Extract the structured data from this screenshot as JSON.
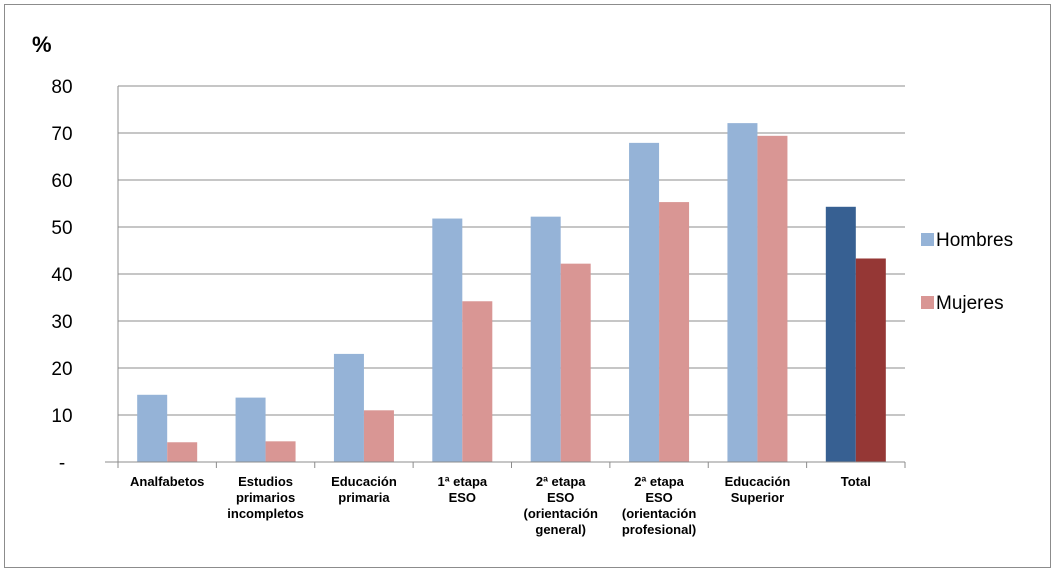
{
  "chart_data": {
    "type": "bar",
    "title": "",
    "ylabel": "%",
    "xlabel": "",
    "ylim": [
      0,
      80
    ],
    "yticks": [
      {
        "value": 0,
        "label": "-"
      },
      {
        "value": 10,
        "label": "10"
      },
      {
        "value": 20,
        "label": "20"
      },
      {
        "value": 30,
        "label": "30"
      },
      {
        "value": 40,
        "label": "40"
      },
      {
        "value": 50,
        "label": "50"
      },
      {
        "value": 60,
        "label": "60"
      },
      {
        "value": 70,
        "label": "70"
      },
      {
        "value": 80,
        "label": "80"
      }
    ],
    "grid": true,
    "legend_position": "right",
    "categories": [
      [
        "Analfabetos"
      ],
      [
        "Estudios",
        "primarios",
        "incompletos"
      ],
      [
        "Educación",
        "primaria"
      ],
      [
        "1ª etapa",
        "ESO"
      ],
      [
        "2ª etapa",
        "ESO",
        "(orientación",
        "general)"
      ],
      [
        "2ª etapa",
        "ESO",
        "(orientación",
        "profesional)"
      ],
      [
        "Educación",
        "Superior"
      ],
      [
        "Total"
      ]
    ],
    "series": [
      {
        "name": "Hombres",
        "color": "#95b3d7",
        "total_color": "#376092",
        "values": [
          14.3,
          13.7,
          23.0,
          51.8,
          52.2,
          67.9,
          72.1,
          54.3
        ]
      },
      {
        "name": "Mujeres",
        "color": "#d99694",
        "total_color": "#953735",
        "values": [
          4.2,
          4.4,
          11.0,
          34.2,
          42.2,
          55.3,
          69.4,
          43.3
        ]
      }
    ]
  }
}
